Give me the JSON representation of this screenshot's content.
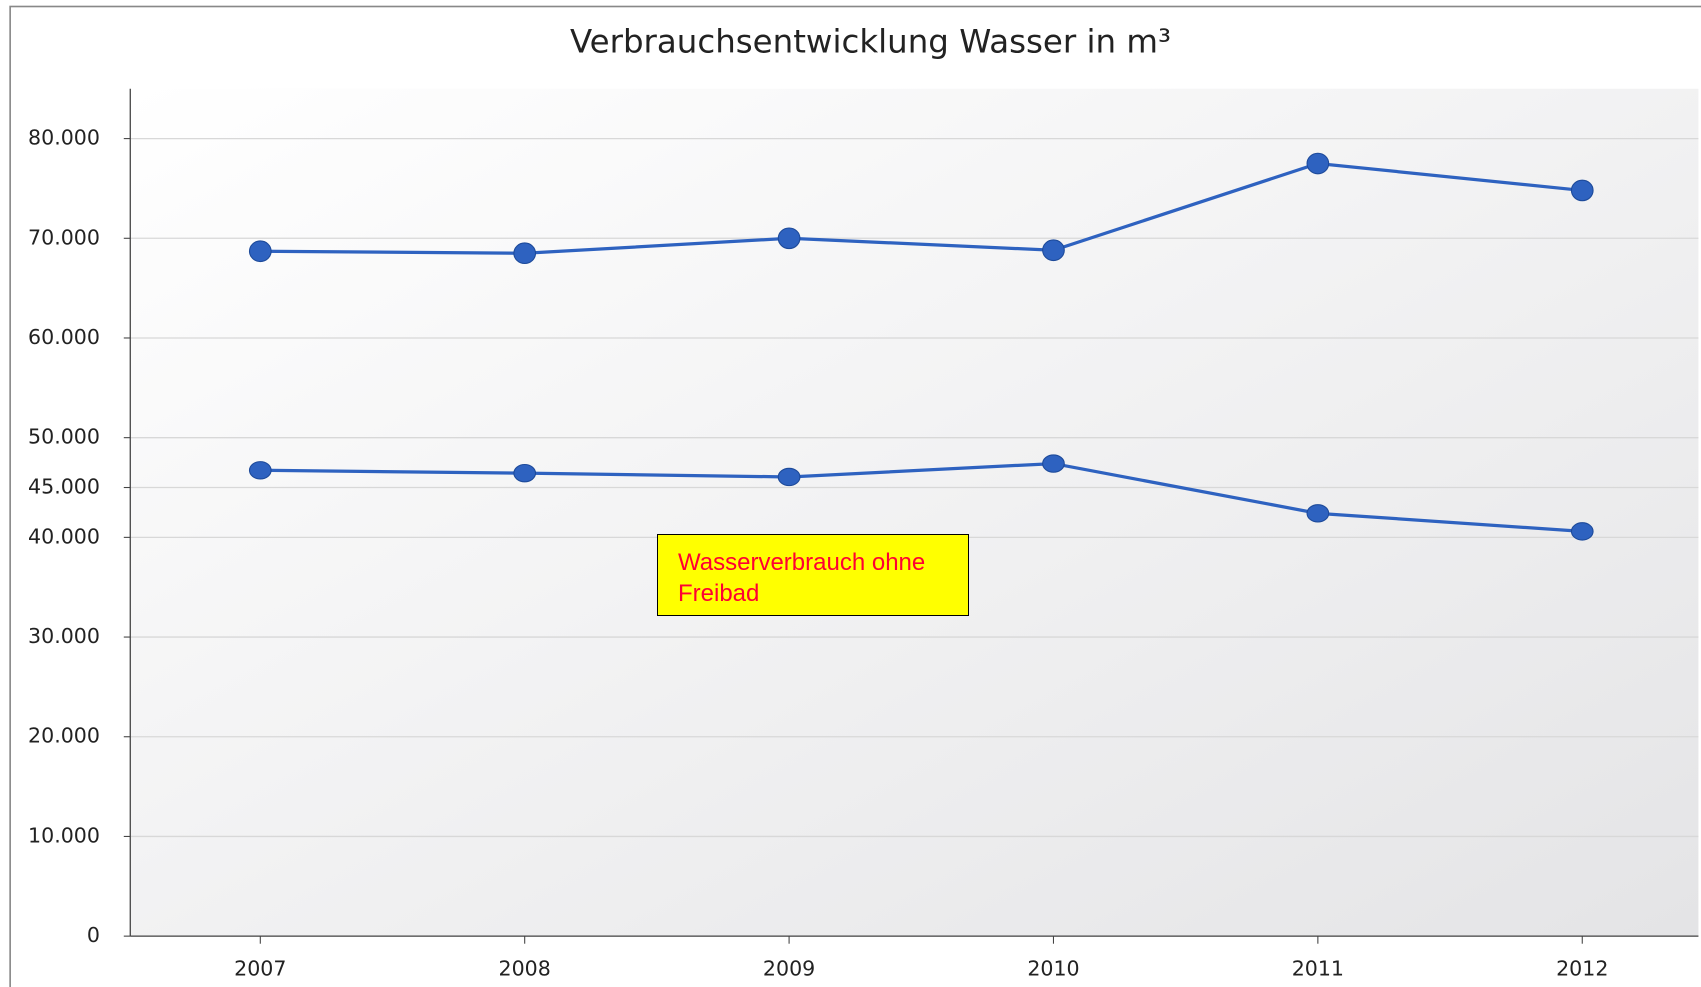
{
  "chart_data": {
    "type": "line",
    "title": "Verbrauchsentwicklung Wasser in m³",
    "categories": [
      "2007",
      "2008",
      "2009",
      "2010",
      "2011",
      "2012"
    ],
    "series": [
      {
        "color": "#2e62c0",
        "values": [
          68700,
          68500,
          70000,
          68800,
          77500,
          74800
        ]
      },
      {
        "color": "#2e62c0",
        "values": [
          46730,
          46440,
          46060,
          47400,
          42410,
          40600
        ]
      }
    ],
    "ylim": [
      0,
      85000
    ],
    "yticks": [
      0,
      {
        "value": 10000,
        "label": "10.000"
      },
      {
        "value": 20000,
        "label": "20.000"
      },
      {
        "value": 30000,
        "label": "30.000"
      },
      {
        "value": 40000,
        "label": "40.000"
      },
      {
        "value": 45000,
        "label": "45.000"
      },
      {
        "value": 50000,
        "label": "50.000"
      },
      {
        "value": 60000,
        "label": "60.000"
      },
      {
        "value": 70000,
        "label": "70.000"
      },
      {
        "value": 80000,
        "label": "80.000"
      }
    ],
    "grid": true,
    "annotations": [
      "Wasserverbrauch ohne Freibad"
    ]
  }
}
